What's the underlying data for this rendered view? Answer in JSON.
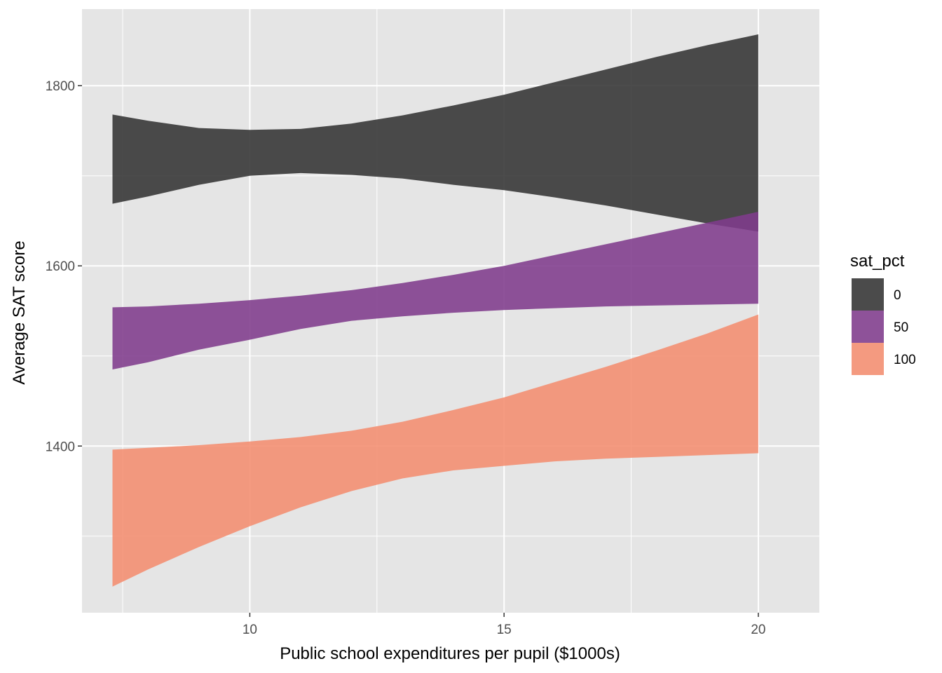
{
  "chart_data": {
    "type": "area",
    "title": "",
    "xlabel": "Public school expenditures per pupil ($1000s)",
    "ylabel": "Average SAT score",
    "xlim": [
      6.7,
      21.2
    ],
    "ylim": [
      1215,
      1885
    ],
    "x_ticks": [
      10,
      15,
      20
    ],
    "x_tick_labels": [
      "10",
      "15",
      "20"
    ],
    "y_ticks": [
      1400,
      1600,
      1800
    ],
    "y_tick_labels": [
      "1400",
      "1600",
      "1800"
    ],
    "grid": true,
    "panel_background": "#e5e5e5",
    "grid_color": "#ffffff",
    "legend": {
      "title": "sat_pct",
      "position": "right",
      "entries": [
        {
          "label": "0",
          "color": "#333333"
        },
        {
          "label": "50",
          "color": "#7f3b8c"
        },
        {
          "label": "100",
          "color": "#f48d70"
        }
      ]
    },
    "series": [
      {
        "name": "0",
        "color": "#333333",
        "opacity": 0.88,
        "x": [
          7.3,
          8,
          9,
          10,
          11,
          12,
          13,
          14,
          15,
          16,
          17,
          18,
          19,
          20
        ],
        "lower": [
          1669,
          1677,
          1690,
          1700,
          1703,
          1701,
          1697,
          1690,
          1684,
          1676,
          1667,
          1657,
          1647,
          1638
        ],
        "upper": [
          1768,
          1761,
          1753,
          1751,
          1752,
          1758,
          1767,
          1778,
          1790,
          1804,
          1818,
          1832,
          1845,
          1857
        ]
      },
      {
        "name": "50",
        "color": "#7f3b8c",
        "opacity": 0.88,
        "x": [
          7.3,
          8,
          9,
          10,
          11,
          12,
          13,
          14,
          15,
          16,
          17,
          18,
          19,
          20
        ],
        "lower": [
          1485,
          1493,
          1507,
          1518,
          1530,
          1539,
          1544,
          1548,
          1551,
          1553,
          1555,
          1556,
          1557,
          1558
        ],
        "upper": [
          1554,
          1555,
          1558,
          1562,
          1567,
          1573,
          1581,
          1590,
          1600,
          1612,
          1624,
          1636,
          1648,
          1660
        ]
      },
      {
        "name": "100",
        "color": "#f48d70",
        "opacity": 0.88,
        "x": [
          7.3,
          8,
          9,
          10,
          11,
          12,
          13,
          14,
          15,
          16,
          17,
          18,
          19,
          20
        ],
        "lower": [
          1244,
          1263,
          1288,
          1311,
          1332,
          1350,
          1364,
          1373,
          1378,
          1383,
          1386,
          1388,
          1390,
          1392
        ],
        "upper": [
          1396,
          1398,
          1401,
          1405,
          1410,
          1417,
          1427,
          1440,
          1454,
          1471,
          1488,
          1506,
          1525,
          1546
        ]
      }
    ]
  }
}
